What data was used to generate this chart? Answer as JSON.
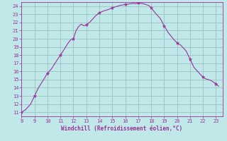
{
  "xlabel": "Windchill (Refroidissement éolien,°C)",
  "bg_color": "#c0e8e8",
  "grid_color": "#a0c8c8",
  "line_color": "#993399",
  "marker_color": "#993399",
  "tick_label_color": "#993399",
  "xlabel_color": "#993399",
  "xlim": [
    8,
    23.5
  ],
  "ylim": [
    10.5,
    24.5
  ],
  "xticks": [
    8,
    9,
    10,
    11,
    12,
    13,
    14,
    15,
    16,
    17,
    18,
    19,
    20,
    21,
    22,
    23
  ],
  "yticks": [
    11,
    12,
    13,
    14,
    15,
    16,
    17,
    18,
    19,
    20,
    21,
    22,
    23,
    24
  ],
  "x": [
    8.0,
    8.3,
    8.7,
    9.0,
    9.3,
    9.7,
    10.0,
    10.3,
    10.7,
    11.0,
    11.2,
    11.4,
    11.6,
    11.8,
    12.0,
    12.2,
    12.4,
    12.6,
    12.8,
    13.0,
    13.3,
    13.7,
    14.0,
    14.3,
    14.7,
    15.0,
    15.2,
    15.4,
    15.6,
    15.8,
    16.0,
    16.2,
    16.4,
    16.6,
    16.8,
    17.0,
    17.2,
    17.4,
    17.6,
    17.8,
    18.0,
    18.3,
    18.7,
    19.0,
    19.3,
    19.7,
    20.0,
    20.3,
    20.7,
    21.0,
    21.3,
    21.7,
    22.0,
    22.2,
    22.4,
    22.6,
    22.8,
    23.0,
    23.2
  ],
  "y": [
    11.0,
    11.3,
    12.0,
    13.0,
    14.0,
    15.0,
    15.8,
    16.3,
    17.3,
    18.0,
    18.5,
    19.0,
    19.5,
    19.9,
    20.0,
    21.0,
    21.5,
    21.8,
    21.6,
    21.7,
    22.1,
    22.8,
    23.2,
    23.4,
    23.6,
    23.8,
    23.9,
    24.0,
    24.1,
    24.15,
    24.2,
    24.25,
    24.3,
    24.35,
    24.3,
    24.4,
    24.35,
    24.3,
    24.2,
    24.1,
    23.8,
    23.2,
    22.5,
    21.6,
    20.8,
    20.0,
    19.5,
    19.2,
    18.5,
    17.5,
    16.5,
    15.8,
    15.3,
    15.1,
    15.0,
    14.9,
    14.7,
    14.5,
    14.2
  ],
  "marker_x": [
    8.0,
    9.0,
    10.0,
    11.0,
    12.0,
    13.0,
    14.0,
    15.0,
    16.0,
    17.0,
    18.0,
    19.0,
    20.0,
    21.0,
    22.0,
    23.0
  ],
  "marker_y": [
    11.0,
    13.0,
    15.8,
    18.0,
    20.0,
    21.7,
    23.2,
    23.8,
    24.2,
    24.4,
    23.8,
    21.6,
    19.5,
    17.5,
    15.3,
    14.5
  ]
}
